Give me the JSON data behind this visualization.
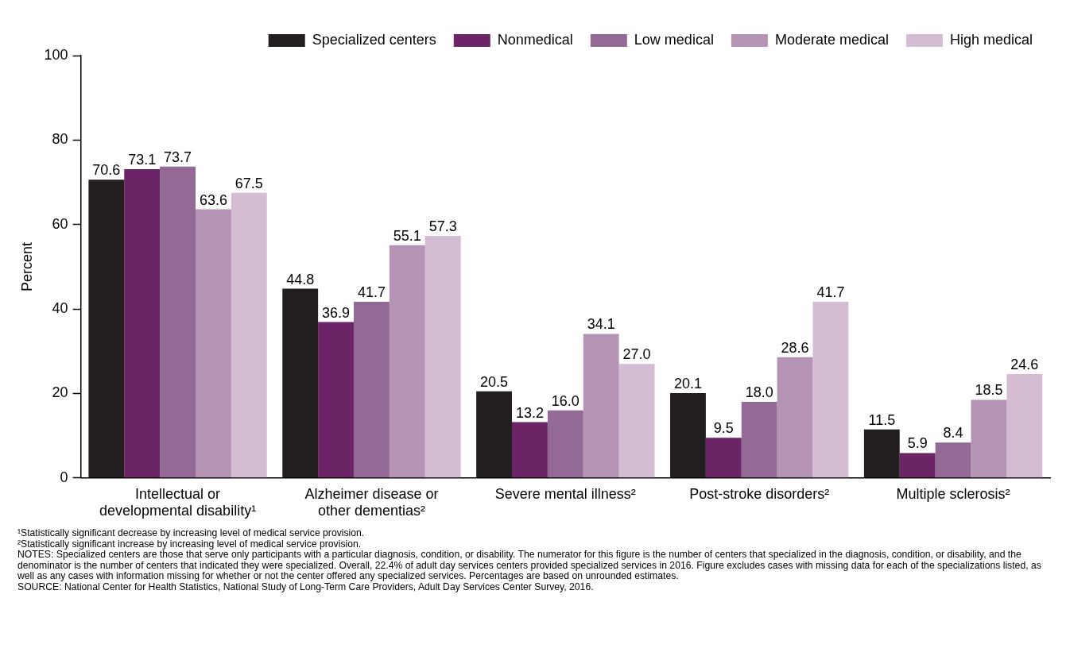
{
  "chart_data": {
    "type": "bar",
    "ylabel": "Percent",
    "categories": [
      "Intellectual or developmental disability¹",
      "Alzheimer disease or other dementias²",
      "Severe mental illness²",
      "Post-stroke disorders²",
      "Multiple sclerosis²"
    ],
    "series": [
      {
        "name": "Specialized centers",
        "color": "#231f20",
        "values": [
          70.6,
          44.8,
          20.5,
          20.1,
          11.5
        ],
        "value_labels": [
          "70.6",
          "44.8",
          "20.5",
          "20.1",
          "11.5"
        ]
      },
      {
        "name": "Nonmedical",
        "color": "#6b2466",
        "values": [
          73.1,
          36.9,
          13.2,
          9.5,
          5.9
        ],
        "value_labels": [
          "73.1",
          "36.9",
          "13.2",
          "9.5",
          "5.9"
        ]
      },
      {
        "name": "Low medical",
        "color": "#936995",
        "values": [
          73.7,
          41.7,
          16.0,
          18.0,
          8.4
        ],
        "value_labels": [
          "73.7",
          "41.7",
          "16.0",
          "18.0",
          "8.4"
        ]
      },
      {
        "name": "Moderate medical",
        "color": "#b493b5",
        "values": [
          63.6,
          55.1,
          34.1,
          28.6,
          18.5
        ],
        "value_labels": [
          "63.6",
          "55.1",
          "34.1",
          "28.6",
          "18.5"
        ]
      },
      {
        "name": "High medical",
        "color": "#d4bcd3",
        "values": [
          67.5,
          57.3,
          27.0,
          41.7,
          24.6
        ],
        "value_labels": [
          "67.5",
          "57.3",
          "27.0",
          "41.7",
          "24.6"
        ]
      }
    ],
    "ylim": [
      0,
      100
    ],
    "yticks": [
      0,
      20,
      40,
      60,
      80,
      100
    ],
    "grid": false,
    "legend": "top right",
    "annotations": [
      "¹Statistically significant decrease by increasing level of medical service provision.",
      "²Statistically significant increase by increasing level of medical service provision.",
      "NOTES: Specialized centers are those that serve only participants with a particular diagnosis, condition, or disability. The numerator for this figure is the number of centers that specialized in the diagnosis, condition, or disability, and the denominator is the number of centers that indicated they were specialized. Overall, 22.4% of adult day services centers provided specialized services in 2016. Figure excludes cases with missing data for each of the specializations listed, as well as any cases with information missing for whether or not the center offered any specialized services. Percentages are based on unrounded estimates.",
      "SOURCE: National Center for Health Statistics, National Study of Long-Term Care Providers, Adult Day Services Center Survey, 2016."
    ]
  }
}
